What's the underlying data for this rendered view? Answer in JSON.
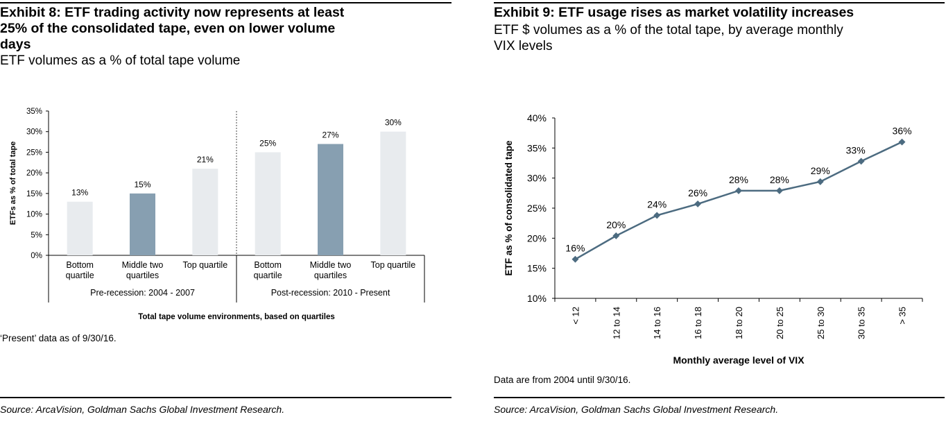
{
  "exhibit8": {
    "title_line1": "Exhibit 8: ETF trading activity now represents at least",
    "title_line2": "25% of the consolidated tape, even on lower volume",
    "title_line3": "days",
    "subtitle": "ETF volumes as a % of total tape volume",
    "note": "‘Present’ data as of 9/30/16.",
    "source": "Source: ArcaVision, Goldman Sachs Global Investment Research.",
    "chart_data": {
      "type": "bar",
      "title": "",
      "ylabel": "ETFs as % of total tape",
      "xlabel": "Total tape volume environments, based on quartiles",
      "ylim": [
        0,
        35
      ],
      "yticks": [
        "0%",
        "5%",
        "10%",
        "15%",
        "20%",
        "25%",
        "30%",
        "35%"
      ],
      "categories": [
        {
          "line1": "Bottom",
          "line2": "quartile",
          "group": 0
        },
        {
          "line1": "Middle two",
          "line2": "quartiles",
          "group": 0
        },
        {
          "line1": "Top quartile",
          "line2": "",
          "group": 0
        },
        {
          "line1": "Bottom",
          "line2": "quartile",
          "group": 1
        },
        {
          "line1": "Middle two",
          "line2": "quartiles",
          "group": 1
        },
        {
          "line1": "Top quartile",
          "line2": "",
          "group": 1
        }
      ],
      "values": [
        13,
        15,
        21,
        25,
        27,
        30
      ],
      "data_labels": [
        "13%",
        "15%",
        "21%",
        "25%",
        "27%",
        "30%"
      ],
      "groups": [
        "Pre-recession: 2004 - 2007",
        "Post-recession: 2010 - Present"
      ],
      "colors": [
        "#e8ebee",
        "#879fb1",
        "#e8ebee",
        "#e8ebee",
        "#879fb1",
        "#e8ebee"
      ],
      "grid": false
    }
  },
  "exhibit9": {
    "title": "Exhibit 9: ETF usage rises as market volatility increases",
    "subtitle_line1": "ETF $ volumes as a % of the total tape, by average monthly",
    "subtitle_line2": "VIX levels",
    "note": "Data are from 2004 until 9/30/16.",
    "source": "Source: ArcaVision, Goldman Sachs Global Investment Research.",
    "chart_data": {
      "type": "line",
      "title": "",
      "ylabel": "ETF as % of consolidated tape",
      "xlabel": "Monthly average level of VIX",
      "ylim": [
        10,
        40
      ],
      "yticks": [
        "10%",
        "15%",
        "20%",
        "25%",
        "30%",
        "35%",
        "40%"
      ],
      "categories": [
        "< 12",
        "12 to 14",
        "14 to 16",
        "16 to 18",
        "18 to 20",
        "20 to 25",
        "25 to 30",
        "30 to 35",
        "> 35"
      ],
      "values": [
        16.5,
        20.4,
        23.8,
        25.7,
        27.9,
        27.9,
        29.4,
        32.8,
        36.0
      ],
      "data_labels": [
        "16%",
        "20%",
        "24%",
        "26%",
        "28%",
        "28%",
        "29%",
        "33%",
        "36%"
      ],
      "line_color": "#4c6b80",
      "grid": false
    }
  }
}
